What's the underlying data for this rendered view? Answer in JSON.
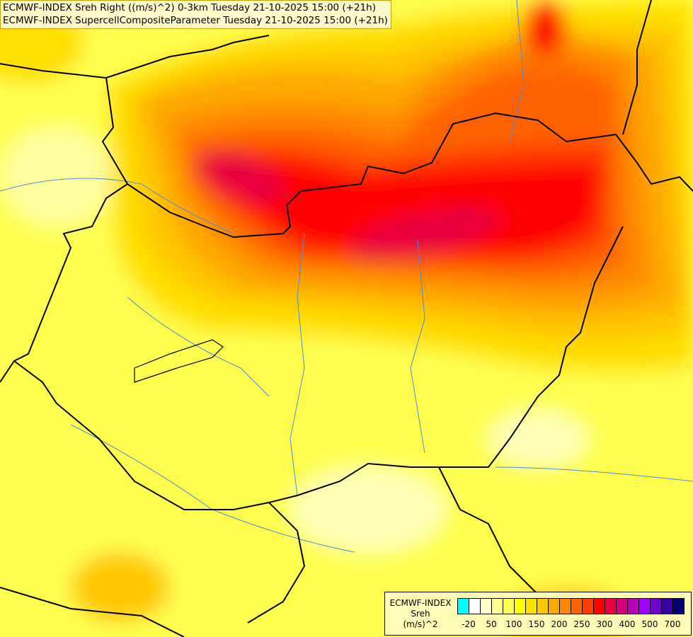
{
  "header": {
    "line1": "ECMWF-INDEX Sreh Right ((m/s)^2) 0-3km Tuesday 21-10-2025 15:00 (+21h)",
    "line2": "ECMWF-INDEX SupercellCompositeParameter Tuesday 21-10-2025 15:00 (+21h)"
  },
  "legend": {
    "source": "ECMWF-INDEX",
    "parameter": "Sreh",
    "unit": "(m/s)^2",
    "colors": [
      "#00ffff",
      "#ffffff",
      "#ffffc8",
      "#ffff90",
      "#ffff50",
      "#ffff00",
      "#ffe000",
      "#ffc800",
      "#ffa800",
      "#ff8800",
      "#ff6400",
      "#ff3c00",
      "#ff0000",
      "#e8003c",
      "#d2007c",
      "#b800b8",
      "#a000ff",
      "#7000d0",
      "#3800a0",
      "#000070"
    ],
    "tick_labels": [
      "-20",
      "50",
      "100",
      "150",
      "200",
      "250",
      "300",
      "400",
      "500",
      "700"
    ]
  },
  "map": {
    "max_region_color": "#e8003c"
  }
}
